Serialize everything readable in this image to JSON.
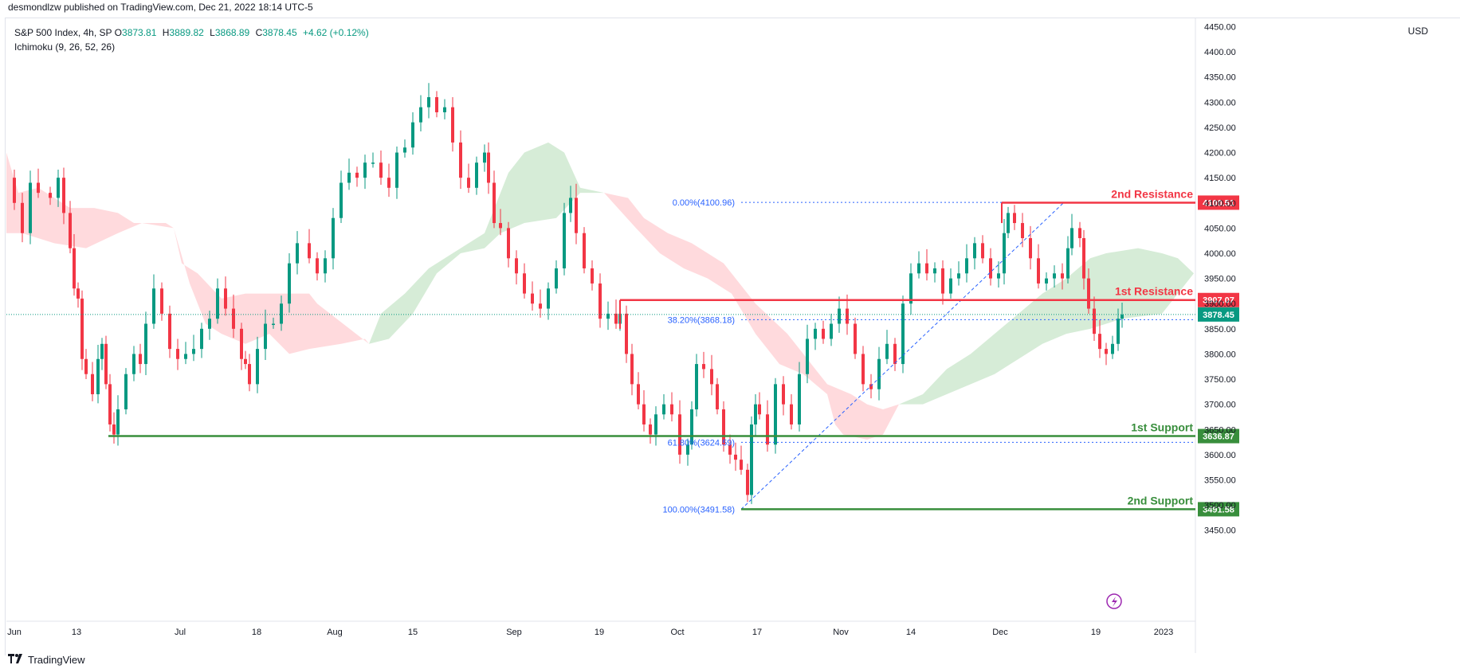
{
  "header": {
    "publisher": "desmondlzw published on TradingView.com, Dec 21, 2022 18:14 UTC-5"
  },
  "legend": {
    "symbol": "S&P 500 Index, 4h, SP",
    "o_label": "O",
    "o_value": "3873.81",
    "h_label": "H",
    "h_value": "3889.82",
    "l_label": "L",
    "l_value": "3868.89",
    "c_label": "C",
    "c_value": "3878.45",
    "change": "+4.62 (+0.12%)",
    "indicator": "Ichimoku (9, 26, 52, 26)"
  },
  "price_axis": {
    "currency": "USD"
  },
  "footer": {
    "brand": "TradingView"
  },
  "colors": {
    "up": "#089981",
    "down": "#f23645",
    "resistance": "#f23645",
    "support": "#388e3c",
    "fib": "#2962ff",
    "kumo_bull": "#c8e6c9",
    "kumo_bear": "#ffcdd2",
    "current_price": "#089981"
  },
  "chart_data": {
    "type": "candlestick",
    "title": "S&P 500 Index, 4h, SP",
    "ylabel": "USD",
    "ylim": [
      3400,
      4500
    ],
    "y_ticks": [
      "4450.00",
      "4400.00",
      "4350.00",
      "4300.00",
      "4250.00",
      "4200.00",
      "4150.00",
      "4100.00",
      "4050.00",
      "4000.00",
      "3950.00",
      "3900.00",
      "3850.00",
      "3800.00",
      "3750.00",
      "3700.00",
      "3650.00",
      "3600.00",
      "3550.00",
      "3500.00",
      "3450.00"
    ],
    "x_ticks": [
      "Jun",
      "13",
      "Jul",
      "18",
      "Aug",
      "15",
      "Sep",
      "19",
      "Oct",
      "17",
      "Nov",
      "14",
      "Dec",
      "19",
      "2023"
    ],
    "current_price": 3878.45,
    "levels": [
      {
        "name": "2nd Resistance",
        "value": 4100.51,
        "label": "4100.51",
        "kind": "resistance"
      },
      {
        "name": "1st Resistance",
        "value": 3907.07,
        "label": "3907.07",
        "kind": "resistance"
      },
      {
        "name": "1st Support",
        "value": 3636.87,
        "label": "3636.87",
        "kind": "support"
      },
      {
        "name": "2nd Support",
        "value": 3491.58,
        "label": "3491.58",
        "kind": "support"
      }
    ],
    "current_label": "3878.45",
    "fibonacci": [
      {
        "level": "0.00%",
        "value": 4100.96,
        "label": "0.00%(4100.96)"
      },
      {
        "level": "38.20%",
        "value": 3868.18,
        "label": "38.20%(3868.18)"
      },
      {
        "level": "61.80%",
        "value": 3624.59,
        "label": "61.80%(3624.59)"
      },
      {
        "level": "100.00%",
        "value": 3491.58,
        "label": "100.00%(3491.58)"
      }
    ],
    "price_path": [
      [
        0,
        4150
      ],
      [
        10,
        4100
      ],
      [
        20,
        4040
      ],
      [
        30,
        4140
      ],
      [
        40,
        4120
      ],
      [
        55,
        4110
      ],
      [
        65,
        4150
      ],
      [
        72,
        4080
      ],
      [
        80,
        4010
      ],
      [
        85,
        3930
      ],
      [
        90,
        3910
      ],
      [
        95,
        3790
      ],
      [
        100,
        3760
      ],
      [
        108,
        3720
      ],
      [
        115,
        3790
      ],
      [
        120,
        3820
      ],
      [
        125,
        3740
      ],
      [
        130,
        3660
      ],
      [
        135,
        3640
      ],
      [
        140,
        3690
      ],
      [
        150,
        3760
      ],
      [
        160,
        3800
      ],
      [
        168,
        3780
      ],
      [
        175,
        3860
      ],
      [
        185,
        3930
      ],
      [
        195,
        3880
      ],
      [
        205,
        3810
      ],
      [
        215,
        3790
      ],
      [
        225,
        3800
      ],
      [
        235,
        3810
      ],
      [
        245,
        3850
      ],
      [
        255,
        3870
      ],
      [
        265,
        3930
      ],
      [
        275,
        3890
      ],
      [
        285,
        3850
      ],
      [
        295,
        3790
      ],
      [
        300,
        3780
      ],
      [
        305,
        3740
      ],
      [
        315,
        3810
      ],
      [
        325,
        3860
      ],
      [
        335,
        3860
      ],
      [
        345,
        3900
      ],
      [
        355,
        3980
      ],
      [
        365,
        4020
      ],
      [
        380,
        3990
      ],
      [
        390,
        3960
      ],
      [
        400,
        3990
      ],
      [
        410,
        4070
      ],
      [
        420,
        4140
      ],
      [
        430,
        4160
      ],
      [
        440,
        4150
      ],
      [
        450,
        4180
      ],
      [
        460,
        4180
      ],
      [
        470,
        4150
      ],
      [
        480,
        4130
      ],
      [
        490,
        4200
      ],
      [
        500,
        4210
      ],
      [
        510,
        4260
      ],
      [
        520,
        4290
      ],
      [
        530,
        4310
      ],
      [
        540,
        4280
      ],
      [
        550,
        4290
      ],
      [
        560,
        4220
      ],
      [
        570,
        4150
      ],
      [
        580,
        4130
      ],
      [
        590,
        4180
      ],
      [
        600,
        4200
      ],
      [
        605,
        4140
      ],
      [
        612,
        4060
      ],
      [
        620,
        4050
      ],
      [
        630,
        3990
      ],
      [
        640,
        3960
      ],
      [
        650,
        3920
      ],
      [
        660,
        3900
      ],
      [
        670,
        3890
      ],
      [
        680,
        3930
      ],
      [
        690,
        3970
      ],
      [
        700,
        4080
      ],
      [
        708,
        4110
      ],
      [
        715,
        4040
      ],
      [
        725,
        3970
      ],
      [
        735,
        3940
      ],
      [
        745,
        3870
      ],
      [
        755,
        3880
      ],
      [
        765,
        3860
      ],
      [
        770,
        3880
      ],
      [
        778,
        3800
      ],
      [
        785,
        3740
      ],
      [
        793,
        3700
      ],
      [
        800,
        3660
      ],
      [
        808,
        3640
      ],
      [
        815,
        3680
      ],
      [
        825,
        3700
      ],
      [
        835,
        3680
      ],
      [
        845,
        3600
      ],
      [
        855,
        3620
      ],
      [
        860,
        3690
      ],
      [
        866,
        3780
      ],
      [
        875,
        3770
      ],
      [
        885,
        3740
      ],
      [
        892,
        3690
      ],
      [
        900,
        3620
      ],
      [
        908,
        3600
      ],
      [
        915,
        3590
      ],
      [
        922,
        3570
      ],
      [
        930,
        3520
      ],
      [
        935,
        3660
      ],
      [
        940,
        3700
      ],
      [
        945,
        3680
      ],
      [
        955,
        3620
      ],
      [
        965,
        3740
      ],
      [
        975,
        3700
      ],
      [
        985,
        3660
      ],
      [
        995,
        3760
      ],
      [
        1005,
        3830
      ],
      [
        1015,
        3850
      ],
      [
        1025,
        3830
      ],
      [
        1035,
        3860
      ],
      [
        1045,
        3890
      ],
      [
        1055,
        3860
      ],
      [
        1065,
        3800
      ],
      [
        1075,
        3740
      ],
      [
        1085,
        3730
      ],
      [
        1095,
        3790
      ],
      [
        1105,
        3820
      ],
      [
        1115,
        3780
      ],
      [
        1125,
        3900
      ],
      [
        1135,
        3960
      ],
      [
        1145,
        3980
      ],
      [
        1155,
        3960
      ],
      [
        1165,
        3970
      ],
      [
        1175,
        3920
      ],
      [
        1185,
        3950
      ],
      [
        1195,
        3960
      ],
      [
        1205,
        3990
      ],
      [
        1215,
        4020
      ],
      [
        1225,
        3990
      ],
      [
        1235,
        3950
      ],
      [
        1245,
        3960
      ],
      [
        1252,
        4040
      ],
      [
        1257,
        4080
      ],
      [
        1265,
        4060
      ],
      [
        1275,
        4030
      ],
      [
        1285,
        3990
      ],
      [
        1295,
        3940
      ],
      [
        1305,
        3950
      ],
      [
        1315,
        3960
      ],
      [
        1325,
        3950
      ],
      [
        1332,
        4010
      ],
      [
        1337,
        4050
      ],
      [
        1347,
        4030
      ],
      [
        1352,
        3950
      ],
      [
        1358,
        3890
      ],
      [
        1365,
        3840
      ],
      [
        1372,
        3810
      ],
      [
        1380,
        3800
      ],
      [
        1388,
        3820
      ],
      [
        1395,
        3870
      ],
      [
        1400,
        3878
      ]
    ],
    "kumo": [
      {
        "kind": "bear",
        "top": [
          [
            0,
            4200
          ],
          [
            15,
            4120
          ],
          [
            40,
            4130
          ],
          [
            80,
            4090
          ],
          [
            110,
            4090
          ],
          [
            140,
            4080
          ],
          [
            160,
            4060
          ],
          [
            200,
            4060
          ],
          [
            210,
            4050
          ]
        ],
        "bottom": [
          [
            0,
            4040
          ],
          [
            20,
            4040
          ],
          [
            60,
            4020
          ],
          [
            100,
            4010
          ],
          [
            140,
            4040
          ],
          [
            170,
            4060
          ],
          [
            210,
            4050
          ]
        ]
      },
      {
        "kind": "bear",
        "top": [
          [
            210,
            4050
          ],
          [
            220,
            3980
          ],
          [
            240,
            3960
          ],
          [
            270,
            3910
          ],
          [
            300,
            3920
          ],
          [
            330,
            3920
          ],
          [
            380,
            3920
          ],
          [
            390,
            3900
          ]
        ],
        "bottom": [
          [
            210,
            4050
          ],
          [
            230,
            3940
          ],
          [
            250,
            3860
          ],
          [
            270,
            3840
          ],
          [
            300,
            3820
          ],
          [
            330,
            3840
          ],
          [
            355,
            3800
          ],
          [
            380,
            3810
          ],
          [
            420,
            3820
          ],
          [
            450,
            3830
          ],
          [
            455,
            3820
          ]
        ]
      },
      {
        "kind": "bull",
        "top": [
          [
            455,
            3820
          ],
          [
            470,
            3880
          ],
          [
            500,
            3920
          ],
          [
            530,
            3970
          ],
          [
            560,
            4000
          ],
          [
            600,
            4040
          ],
          [
            630,
            4160
          ],
          [
            650,
            4200
          ],
          [
            680,
            4220
          ],
          [
            700,
            4200
          ],
          [
            720,
            4130
          ],
          [
            750,
            4120
          ]
        ],
        "bottom": [
          [
            455,
            3820
          ],
          [
            480,
            3830
          ],
          [
            510,
            3880
          ],
          [
            540,
            3960
          ],
          [
            570,
            4000
          ],
          [
            600,
            4010
          ],
          [
            620,
            4040
          ],
          [
            650,
            4060
          ],
          [
            690,
            4070
          ],
          [
            720,
            4120
          ],
          [
            750,
            4120
          ]
        ]
      },
      {
        "kind": "bear",
        "top": [
          [
            750,
            4120
          ],
          [
            780,
            4110
          ],
          [
            800,
            4070
          ],
          [
            830,
            4040
          ],
          [
            860,
            4020
          ],
          [
            880,
            4000
          ],
          [
            900,
            3980
          ],
          [
            940,
            3900
          ],
          [
            980,
            3840
          ],
          [
            1010,
            3780
          ],
          [
            1030,
            3740
          ],
          [
            1060,
            3720
          ],
          [
            1080,
            3700
          ],
          [
            1100,
            3690
          ],
          [
            1120,
            3700
          ]
        ],
        "bottom": [
          [
            750,
            4120
          ],
          [
            790,
            4050
          ],
          [
            820,
            4000
          ],
          [
            850,
            3970
          ],
          [
            880,
            3950
          ],
          [
            910,
            3920
          ],
          [
            940,
            3840
          ],
          [
            970,
            3780
          ],
          [
            1000,
            3760
          ],
          [
            1030,
            3720
          ],
          [
            1040,
            3660
          ],
          [
            1050,
            3640
          ],
          [
            1080,
            3630
          ],
          [
            1100,
            3640
          ],
          [
            1120,
            3700
          ]
        ]
      },
      {
        "kind": "bull",
        "top": [
          [
            1120,
            3700
          ],
          [
            1150,
            3720
          ],
          [
            1180,
            3770
          ],
          [
            1210,
            3800
          ],
          [
            1240,
            3840
          ],
          [
            1270,
            3880
          ],
          [
            1300,
            3920
          ],
          [
            1330,
            3950
          ],
          [
            1360,
            3990
          ],
          [
            1380,
            4000
          ],
          [
            1420,
            4010
          ],
          [
            1450,
            4000
          ],
          [
            1470,
            3990
          ],
          [
            1490,
            3960
          ]
        ],
        "bottom": [
          [
            1120,
            3700
          ],
          [
            1150,
            3700
          ],
          [
            1180,
            3720
          ],
          [
            1210,
            3740
          ],
          [
            1240,
            3760
          ],
          [
            1270,
            3790
          ],
          [
            1300,
            3820
          ],
          [
            1330,
            3840
          ],
          [
            1360,
            3850
          ],
          [
            1400,
            3870
          ],
          [
            1450,
            3880
          ],
          [
            1490,
            3960
          ]
        ]
      }
    ]
  }
}
